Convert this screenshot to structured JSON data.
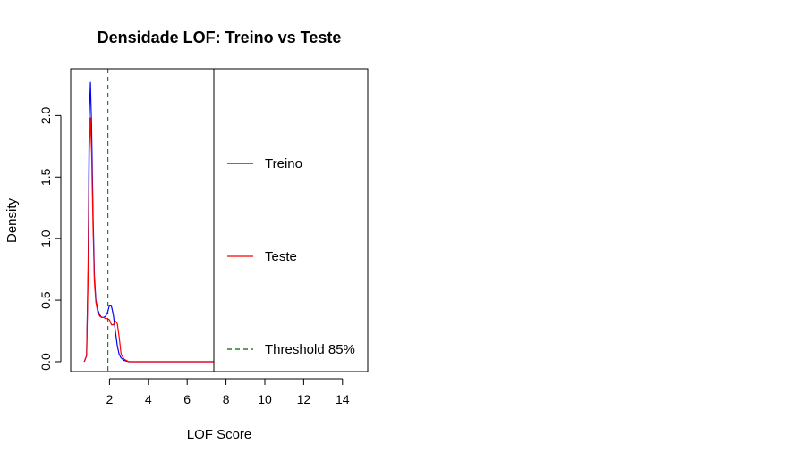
{
  "chart_data": {
    "type": "line",
    "title": "Densidade LOF: Treino vs Teste",
    "xlabel": "LOF Score",
    "ylabel": "Density",
    "xlim": [
      0,
      15.3
    ],
    "ylim": [
      -0.08,
      2.38
    ],
    "xticks": [
      2,
      4,
      6,
      8,
      10,
      12,
      14
    ],
    "xtick_labels": [
      "2",
      "4",
      "6",
      "8",
      "10",
      "12",
      "14"
    ],
    "yticks": [
      0.0,
      0.5,
      1.0,
      1.5,
      2.0
    ],
    "ytick_labels": [
      "0.0",
      "0.5",
      "1.0",
      "1.5",
      "2.0"
    ],
    "grid": false,
    "legend_position": "right",
    "series": [
      {
        "name": "Treino",
        "color": "#0000ff",
        "style": "solid",
        "x": [
          0.7,
          0.82,
          0.9,
          0.96,
          1.02,
          1.08,
          1.15,
          1.22,
          1.3,
          1.4,
          1.5,
          1.6,
          1.7,
          1.8,
          1.9,
          2.0,
          2.1,
          2.2,
          2.3,
          2.4,
          2.5,
          2.6,
          2.75,
          3.0,
          3.5,
          5,
          7.6
        ],
        "y": [
          0.0,
          0.05,
          0.8,
          2.0,
          2.27,
          1.9,
          1.2,
          0.7,
          0.5,
          0.42,
          0.38,
          0.36,
          0.36,
          0.37,
          0.4,
          0.46,
          0.45,
          0.38,
          0.25,
          0.13,
          0.06,
          0.03,
          0.01,
          0.0,
          0.0,
          0.0,
          0.0
        ]
      },
      {
        "name": "Teste",
        "color": "#ff0000",
        "style": "solid",
        "x": [
          0.7,
          0.82,
          0.9,
          0.96,
          1.02,
          1.08,
          1.15,
          1.22,
          1.3,
          1.4,
          1.5,
          1.6,
          1.7,
          1.8,
          1.9,
          2.0,
          2.1,
          2.2,
          2.3,
          2.4,
          2.5,
          2.6,
          2.75,
          3.0,
          3.5,
          5,
          7.6
        ],
        "y": [
          0.0,
          0.05,
          0.7,
          1.7,
          1.98,
          1.7,
          1.1,
          0.65,
          0.48,
          0.4,
          0.37,
          0.36,
          0.36,
          0.35,
          0.35,
          0.34,
          0.3,
          0.3,
          0.33,
          0.31,
          0.2,
          0.06,
          0.02,
          0.0,
          0.0,
          0.0,
          0.0
        ]
      }
    ],
    "threshold": {
      "name": "Threshold 85%",
      "x": 1.92,
      "color": "#006400",
      "style": "dashed"
    }
  }
}
